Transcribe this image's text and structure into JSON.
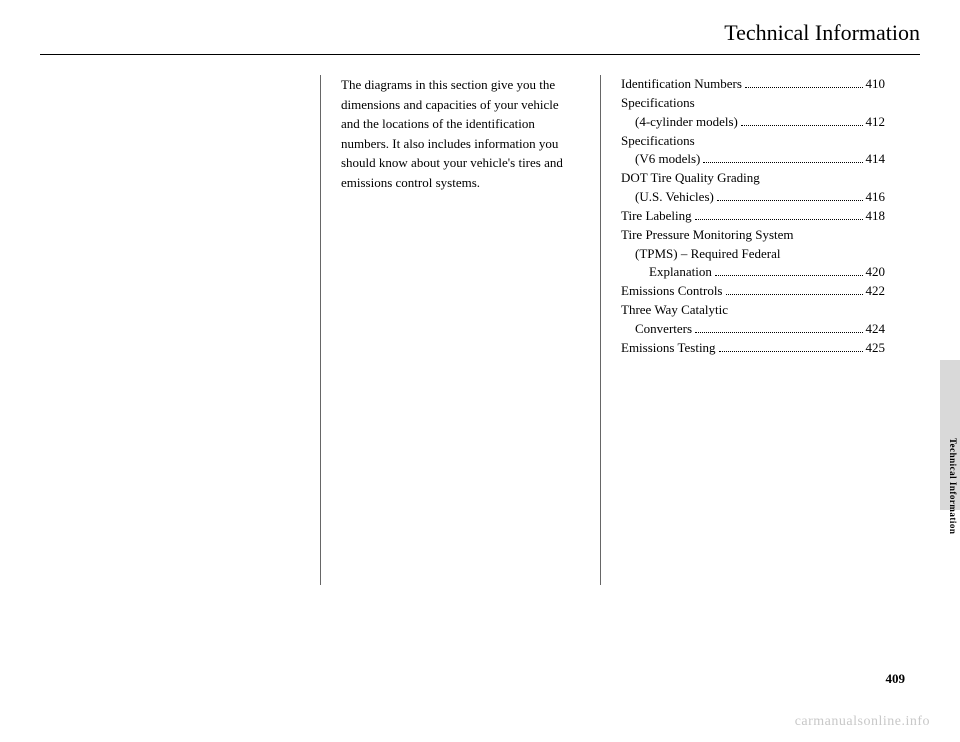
{
  "header": {
    "title": "Technical Information"
  },
  "intro": "The diagrams in this section give you the dimensions and capacities of your vehicle and the locations of the identification numbers. It also includes information you should know about your vehicle's tires and emissions control systems.",
  "toc": [
    {
      "label": "Identification Numbers",
      "page": "410",
      "indent": 0,
      "dots": true,
      "bold": false
    },
    {
      "label": "Specifications",
      "page": "",
      "indent": 0,
      "dots": false,
      "bold": false
    },
    {
      "label": "(4-cylinder models)",
      "page": "412",
      "indent": 1,
      "dots": true,
      "bold": false
    },
    {
      "label": "Specifications",
      "page": "",
      "indent": 0,
      "dots": false,
      "bold": false
    },
    {
      "label": "(V6 models)",
      "page": "414",
      "indent": 1,
      "dots": true,
      "bold": false
    },
    {
      "label": "DOT Tire Quality Grading",
      "page": "",
      "indent": 0,
      "dots": false,
      "bold": false
    },
    {
      "label": "(U.S. Vehicles)",
      "page": "416",
      "indent": 1,
      "dots": true,
      "bold": false
    },
    {
      "label": "Tire Labeling",
      "page": "418",
      "indent": 0,
      "dots": true,
      "bold": false
    },
    {
      "label": "Tire Pressure Monitoring System",
      "page": "",
      "indent": 0,
      "dots": false,
      "bold": false
    },
    {
      "label": "(TPMS) – Required Federal",
      "page": "",
      "indent": 1,
      "dots": false,
      "bold": false
    },
    {
      "label": "Explanation",
      "page": "420",
      "indent": 2,
      "dots": true,
      "bold": false
    },
    {
      "label": "Emissions Controls",
      "page": "422",
      "indent": 0,
      "dots": true,
      "bold": false
    },
    {
      "label": "Three Way Catalytic",
      "page": "",
      "indent": 0,
      "dots": false,
      "bold": false
    },
    {
      "label": "Converters",
      "page": "424",
      "indent": 1,
      "dots": true,
      "bold": false
    },
    {
      "label": "Emissions Testing",
      "page": "425",
      "indent": 0,
      "dots": true,
      "bold": false
    }
  ],
  "sideTab": "Technical Information",
  "pageNumber": "409",
  "watermark": "carmanualsonline.info"
}
